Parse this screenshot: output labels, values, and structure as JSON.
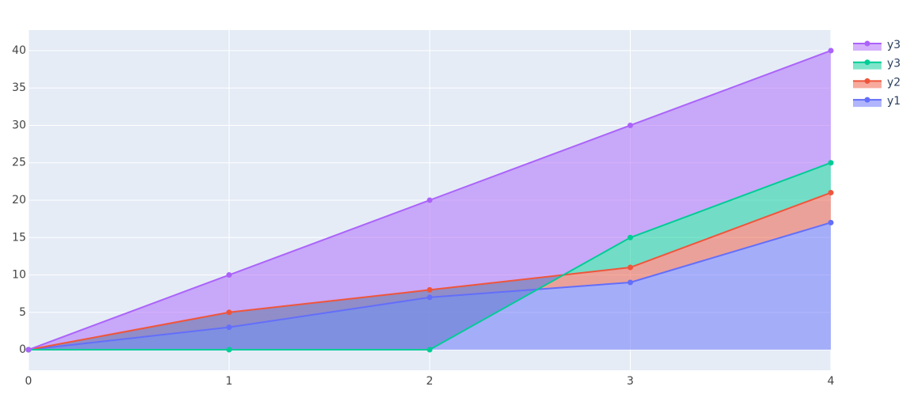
{
  "chart_data": {
    "type": "area",
    "x": [
      0,
      1,
      2,
      3,
      4
    ],
    "series": [
      {
        "name": "y1",
        "color": "#636efa",
        "fill": "tozeroy",
        "values": [
          0,
          3,
          7,
          9,
          17
        ]
      },
      {
        "name": "y2",
        "color": "#ef553b",
        "fill": "tonexty",
        "values": [
          0,
          5,
          8,
          11,
          21
        ]
      },
      {
        "name": "y3",
        "color": "#00cc96",
        "fill": "tonexty",
        "values": [
          0,
          0,
          0,
          15,
          25
        ]
      },
      {
        "name": "y3",
        "color": "#ab63fa",
        "fill": "tonexty",
        "values": [
          0,
          10,
          20,
          30,
          40
        ]
      }
    ],
    "xlim": [
      0,
      4
    ],
    "xticks": [
      0,
      1,
      2,
      3,
      4
    ],
    "ylim": [
      -2.75,
      42.75
    ],
    "yticks": [
      0,
      5,
      10,
      15,
      20,
      25,
      30,
      35,
      40
    ],
    "grid": true,
    "legend": "top-right"
  }
}
